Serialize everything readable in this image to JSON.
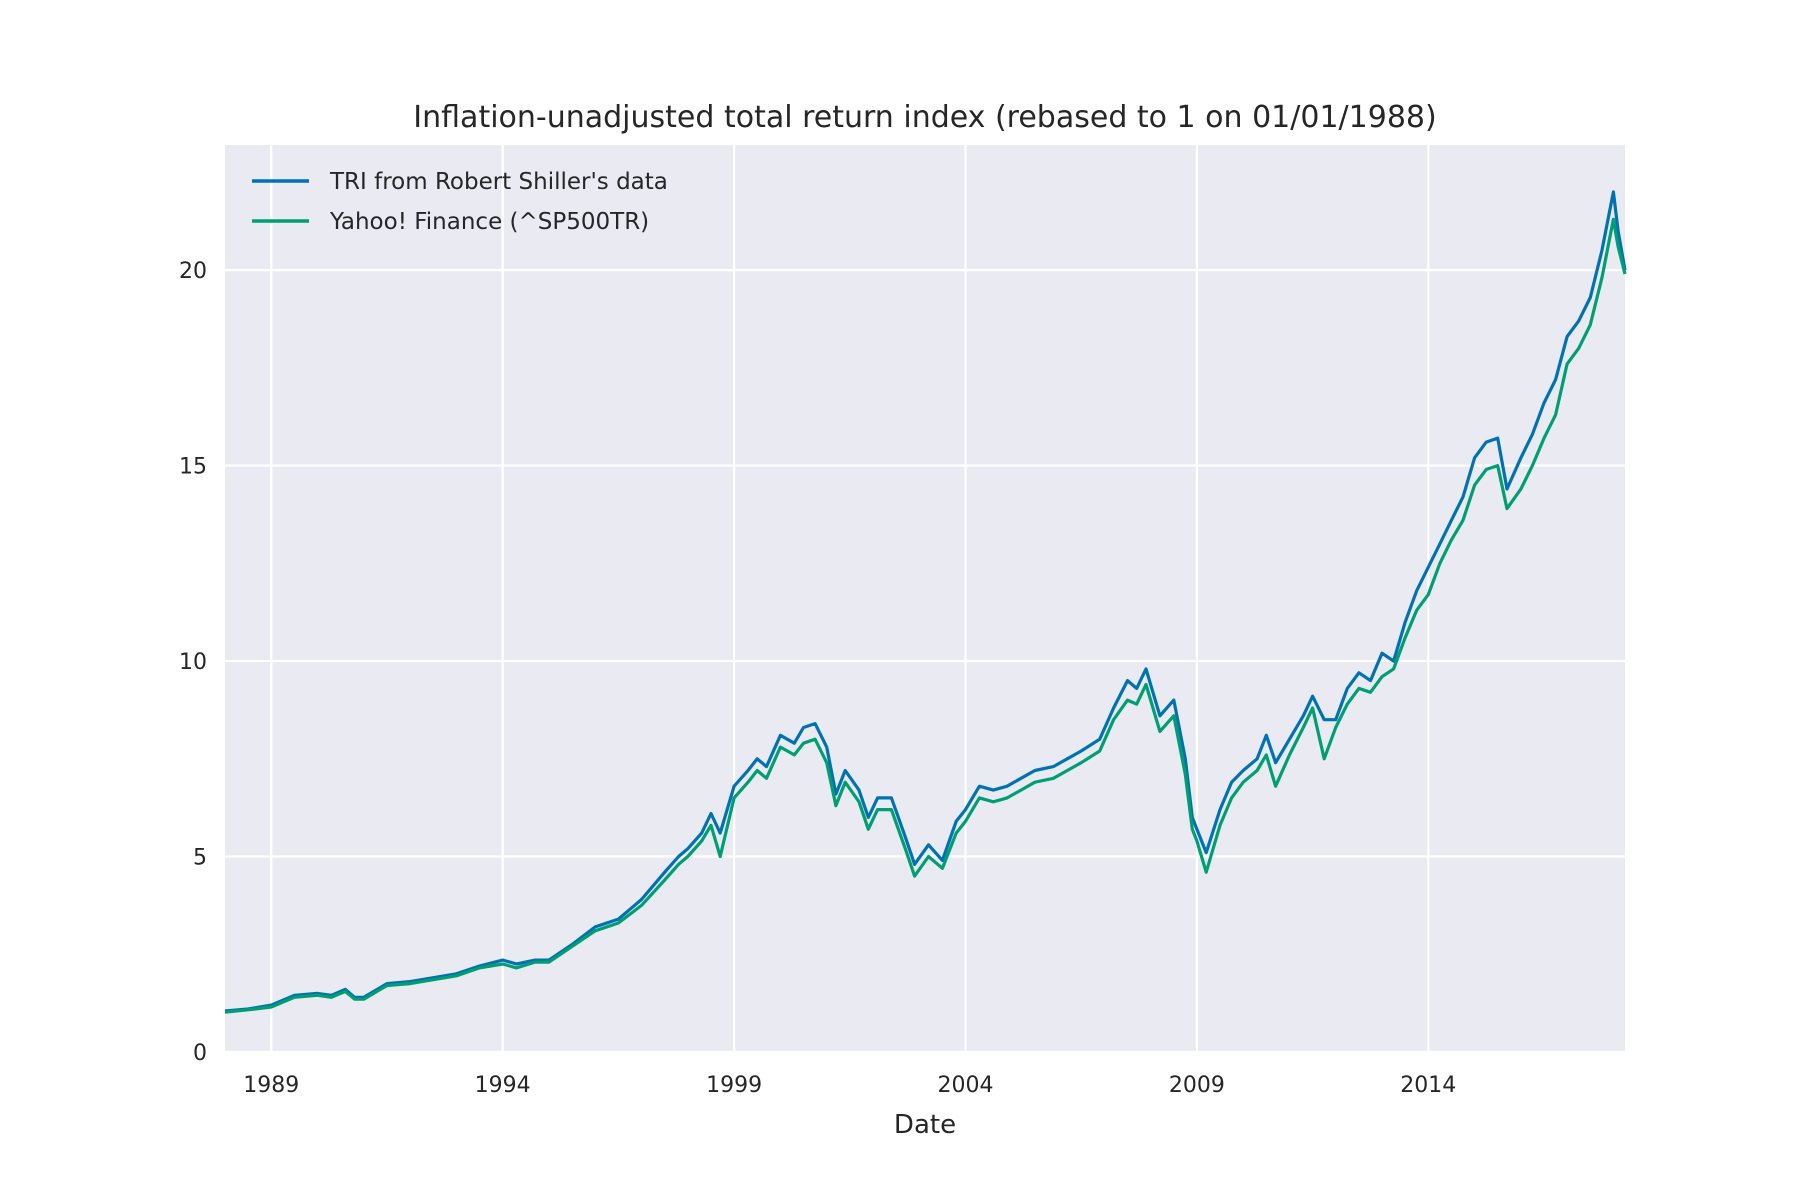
{
  "chart_data": {
    "type": "line",
    "title": "Inflation-unadjusted total return index (rebased to 1 on 01/01/1988)",
    "xlabel": "Date",
    "ylabel": "",
    "xlim": [
      1988.0,
      2018.25
    ],
    "ylim": [
      0,
      23.2
    ],
    "x_ticks": [
      1989,
      1994,
      1999,
      2004,
      2009,
      2014
    ],
    "x_tick_labels": [
      "1989",
      "1994",
      "1999",
      "2004",
      "2009",
      "2014"
    ],
    "y_ticks": [
      0,
      5,
      10,
      15,
      20
    ],
    "y_tick_labels": [
      "0",
      "5",
      "10",
      "15",
      "20"
    ],
    "grid": true,
    "legend_position": "top-left",
    "background": "#eaeaf2",
    "series": [
      {
        "name": "TRI from Robert Shiller's data",
        "color": "#0072b2",
        "points": [
          [
            1988.0,
            1.05
          ],
          [
            1988.5,
            1.1
          ],
          [
            1989.0,
            1.2
          ],
          [
            1989.5,
            1.45
          ],
          [
            1990.0,
            1.5
          ],
          [
            1990.3,
            1.45
          ],
          [
            1990.6,
            1.6
          ],
          [
            1990.8,
            1.4
          ],
          [
            1991.0,
            1.4
          ],
          [
            1991.5,
            1.75
          ],
          [
            1992.0,
            1.8
          ],
          [
            1992.5,
            1.9
          ],
          [
            1993.0,
            2.0
          ],
          [
            1993.5,
            2.2
          ],
          [
            1994.0,
            2.35
          ],
          [
            1994.3,
            2.25
          ],
          [
            1994.7,
            2.35
          ],
          [
            1995.0,
            2.35
          ],
          [
            1995.5,
            2.75
          ],
          [
            1996.0,
            3.2
          ],
          [
            1996.5,
            3.4
          ],
          [
            1997.0,
            3.9
          ],
          [
            1997.5,
            4.6
          ],
          [
            1997.8,
            5.0
          ],
          [
            1998.0,
            5.2
          ],
          [
            1998.3,
            5.6
          ],
          [
            1998.5,
            6.1
          ],
          [
            1998.7,
            5.6
          ],
          [
            1999.0,
            6.8
          ],
          [
            1999.3,
            7.2
          ],
          [
            1999.5,
            7.5
          ],
          [
            1999.7,
            7.3
          ],
          [
            2000.0,
            8.1
          ],
          [
            2000.3,
            7.9
          ],
          [
            2000.5,
            8.3
          ],
          [
            2000.75,
            8.4
          ],
          [
            2001.0,
            7.8
          ],
          [
            2001.2,
            6.6
          ],
          [
            2001.4,
            7.2
          ],
          [
            2001.7,
            6.7
          ],
          [
            2001.9,
            6.0
          ],
          [
            2002.1,
            6.5
          ],
          [
            2002.4,
            6.5
          ],
          [
            2002.7,
            5.5
          ],
          [
            2002.9,
            4.8
          ],
          [
            2003.2,
            5.3
          ],
          [
            2003.5,
            4.9
          ],
          [
            2003.8,
            5.9
          ],
          [
            2004.0,
            6.2
          ],
          [
            2004.3,
            6.8
          ],
          [
            2004.6,
            6.7
          ],
          [
            2004.9,
            6.8
          ],
          [
            2005.2,
            7.0
          ],
          [
            2005.5,
            7.2
          ],
          [
            2005.9,
            7.3
          ],
          [
            2006.2,
            7.5
          ],
          [
            2006.5,
            7.7
          ],
          [
            2006.9,
            8.0
          ],
          [
            2007.2,
            8.8
          ],
          [
            2007.5,
            9.5
          ],
          [
            2007.7,
            9.3
          ],
          [
            2007.9,
            9.8
          ],
          [
            2008.2,
            8.6
          ],
          [
            2008.5,
            9.0
          ],
          [
            2008.75,
            7.5
          ],
          [
            2008.9,
            6.0
          ],
          [
            2009.0,
            5.7
          ],
          [
            2009.2,
            5.1
          ],
          [
            2009.5,
            6.2
          ],
          [
            2009.75,
            6.9
          ],
          [
            2010.0,
            7.2
          ],
          [
            2010.3,
            7.5
          ],
          [
            2010.5,
            8.1
          ],
          [
            2010.7,
            7.4
          ],
          [
            2011.0,
            8.0
          ],
          [
            2011.3,
            8.6
          ],
          [
            2011.5,
            9.1
          ],
          [
            2011.75,
            8.5
          ],
          [
            2012.0,
            8.5
          ],
          [
            2012.25,
            9.3
          ],
          [
            2012.5,
            9.7
          ],
          [
            2012.75,
            9.5
          ],
          [
            2013.0,
            10.2
          ],
          [
            2013.25,
            10.0
          ],
          [
            2013.5,
            11.0
          ],
          [
            2013.75,
            11.8
          ],
          [
            2014.0,
            12.4
          ],
          [
            2014.25,
            13.0
          ],
          [
            2014.5,
            13.6
          ],
          [
            2014.75,
            14.2
          ],
          [
            2015.0,
            15.2
          ],
          [
            2015.25,
            15.6
          ],
          [
            2015.5,
            15.7
          ],
          [
            2015.7,
            14.4
          ],
          [
            2016.0,
            15.2
          ],
          [
            2016.25,
            15.8
          ],
          [
            2016.5,
            16.6
          ],
          [
            2016.75,
            17.2
          ],
          [
            2017.0,
            18.3
          ],
          [
            2017.25,
            18.7
          ],
          [
            2017.5,
            19.3
          ],
          [
            2017.75,
            20.5
          ],
          [
            2018.0,
            22.0
          ],
          [
            2018.1,
            21.0
          ],
          [
            2018.25,
            20.0
          ]
        ]
      },
      {
        "name": "Yahoo! Finance (^SP500TR)",
        "color": "#009e73",
        "points": [
          [
            1988.0,
            1.02
          ],
          [
            1988.5,
            1.08
          ],
          [
            1989.0,
            1.15
          ],
          [
            1989.5,
            1.4
          ],
          [
            1990.0,
            1.45
          ],
          [
            1990.3,
            1.4
          ],
          [
            1990.6,
            1.55
          ],
          [
            1990.8,
            1.35
          ],
          [
            1991.0,
            1.35
          ],
          [
            1991.5,
            1.7
          ],
          [
            1992.0,
            1.75
          ],
          [
            1992.5,
            1.85
          ],
          [
            1993.0,
            1.95
          ],
          [
            1993.5,
            2.15
          ],
          [
            1994.0,
            2.25
          ],
          [
            1994.3,
            2.15
          ],
          [
            1994.7,
            2.3
          ],
          [
            1995.0,
            2.3
          ],
          [
            1995.5,
            2.7
          ],
          [
            1996.0,
            3.1
          ],
          [
            1996.5,
            3.3
          ],
          [
            1997.0,
            3.75
          ],
          [
            1997.5,
            4.4
          ],
          [
            1997.8,
            4.8
          ],
          [
            1998.0,
            5.0
          ],
          [
            1998.3,
            5.4
          ],
          [
            1998.5,
            5.8
          ],
          [
            1998.7,
            5.0
          ],
          [
            1999.0,
            6.5
          ],
          [
            1999.3,
            6.9
          ],
          [
            1999.5,
            7.2
          ],
          [
            1999.7,
            7.0
          ],
          [
            2000.0,
            7.8
          ],
          [
            2000.3,
            7.6
          ],
          [
            2000.5,
            7.9
          ],
          [
            2000.75,
            8.0
          ],
          [
            2001.0,
            7.4
          ],
          [
            2001.2,
            6.3
          ],
          [
            2001.4,
            6.9
          ],
          [
            2001.7,
            6.4
          ],
          [
            2001.9,
            5.7
          ],
          [
            2002.1,
            6.2
          ],
          [
            2002.4,
            6.2
          ],
          [
            2002.7,
            5.2
          ],
          [
            2002.9,
            4.5
          ],
          [
            2003.2,
            5.0
          ],
          [
            2003.5,
            4.7
          ],
          [
            2003.8,
            5.6
          ],
          [
            2004.0,
            5.9
          ],
          [
            2004.3,
            6.5
          ],
          [
            2004.6,
            6.4
          ],
          [
            2004.9,
            6.5
          ],
          [
            2005.2,
            6.7
          ],
          [
            2005.5,
            6.9
          ],
          [
            2005.9,
            7.0
          ],
          [
            2006.2,
            7.2
          ],
          [
            2006.5,
            7.4
          ],
          [
            2006.9,
            7.7
          ],
          [
            2007.2,
            8.5
          ],
          [
            2007.5,
            9.0
          ],
          [
            2007.7,
            8.9
          ],
          [
            2007.9,
            9.4
          ],
          [
            2008.2,
            8.2
          ],
          [
            2008.5,
            8.6
          ],
          [
            2008.75,
            7.1
          ],
          [
            2008.9,
            5.7
          ],
          [
            2009.0,
            5.4
          ],
          [
            2009.2,
            4.6
          ],
          [
            2009.5,
            5.8
          ],
          [
            2009.75,
            6.5
          ],
          [
            2010.0,
            6.9
          ],
          [
            2010.3,
            7.2
          ],
          [
            2010.5,
            7.6
          ],
          [
            2010.7,
            6.8
          ],
          [
            2011.0,
            7.6
          ],
          [
            2011.3,
            8.3
          ],
          [
            2011.5,
            8.8
          ],
          [
            2011.75,
            7.5
          ],
          [
            2012.0,
            8.3
          ],
          [
            2012.25,
            8.9
          ],
          [
            2012.5,
            9.3
          ],
          [
            2012.75,
            9.2
          ],
          [
            2013.0,
            9.6
          ],
          [
            2013.25,
            9.8
          ],
          [
            2013.5,
            10.6
          ],
          [
            2013.75,
            11.3
          ],
          [
            2014.0,
            11.7
          ],
          [
            2014.25,
            12.5
          ],
          [
            2014.5,
            13.1
          ],
          [
            2014.75,
            13.6
          ],
          [
            2015.0,
            14.5
          ],
          [
            2015.25,
            14.9
          ],
          [
            2015.5,
            15.0
          ],
          [
            2015.7,
            13.9
          ],
          [
            2016.0,
            14.4
          ],
          [
            2016.25,
            15.0
          ],
          [
            2016.5,
            15.7
          ],
          [
            2016.75,
            16.3
          ],
          [
            2017.0,
            17.6
          ],
          [
            2017.25,
            18.0
          ],
          [
            2017.5,
            18.6
          ],
          [
            2017.75,
            19.8
          ],
          [
            2018.0,
            21.3
          ],
          [
            2018.1,
            20.6
          ],
          [
            2018.25,
            19.9
          ]
        ]
      }
    ]
  }
}
